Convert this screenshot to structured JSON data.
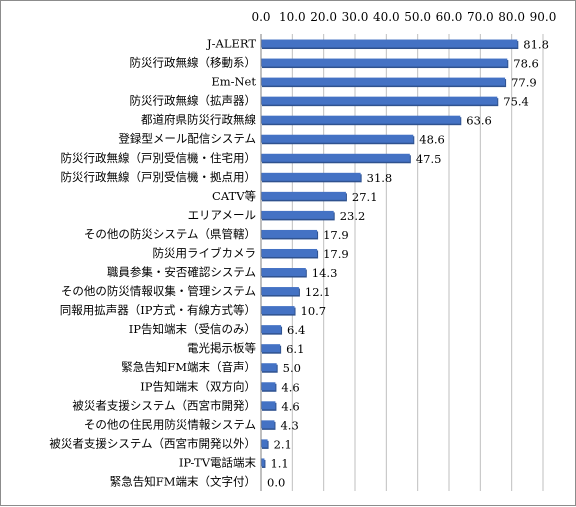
{
  "chart_data": {
    "type": "bar",
    "orientation": "horizontal",
    "title": "",
    "xlabel": "",
    "ylabel": "",
    "xlim": [
      0,
      90
    ],
    "ticks": [
      "0.0",
      "10.0",
      "20.0",
      "30.0",
      "40.0",
      "50.0",
      "60.0",
      "70.0",
      "80.0",
      "90.0"
    ],
    "tick_values": [
      0,
      10,
      20,
      30,
      40,
      50,
      60,
      70,
      80,
      90
    ],
    "grid": true,
    "bar_color": "#4472c4",
    "categories": [
      "J-ALERT",
      "防災行政無線（移動系）",
      "Em-Net",
      "防災行政無線（拡声器）",
      "都道府県防災行政無線",
      "登録型メール配信システム",
      "防災行政無線（戸別受信機・住宅用）",
      "防災行政無線（戸別受信機・拠点用）",
      "CATV等",
      "エリアメール",
      "その他の防災システム（県管轄）",
      "防災用ライブカメラ",
      "職員参集・安否確認システム",
      "その他の防災情報収集・管理システム",
      "同報用拡声器（IP方式・有線方式等）",
      "IP告知端末（受信のみ）",
      "電光掲示板等",
      "緊急告知FM端末（音声）",
      "IP告知端末（双方向）",
      "被災者支援システム（西宮市開発）",
      "その他の住民用防災情報システム",
      "被災者支援システム（西宮市開発以外）",
      "IP-TV電話端末",
      "緊急告知FM端末（文字付）"
    ],
    "values": [
      81.8,
      78.6,
      77.9,
      75.4,
      63.6,
      48.6,
      47.5,
      31.8,
      27.1,
      23.2,
      17.9,
      17.9,
      14.3,
      12.1,
      10.7,
      6.4,
      6.1,
      5.0,
      4.6,
      4.6,
      4.3,
      2.1,
      1.1,
      0.0
    ],
    "value_labels": [
      "81.8",
      "78.6",
      "77.9",
      "75.4",
      "63.6",
      "48.6",
      "47.5",
      "31.8",
      "27.1",
      "23.2",
      "17.9",
      "17.9",
      "14.3",
      "12.1",
      "10.7",
      "6.4",
      "6.1",
      "5.0",
      "4.6",
      "4.6",
      "4.3",
      "2.1",
      "1.1",
      "0.0"
    ]
  }
}
